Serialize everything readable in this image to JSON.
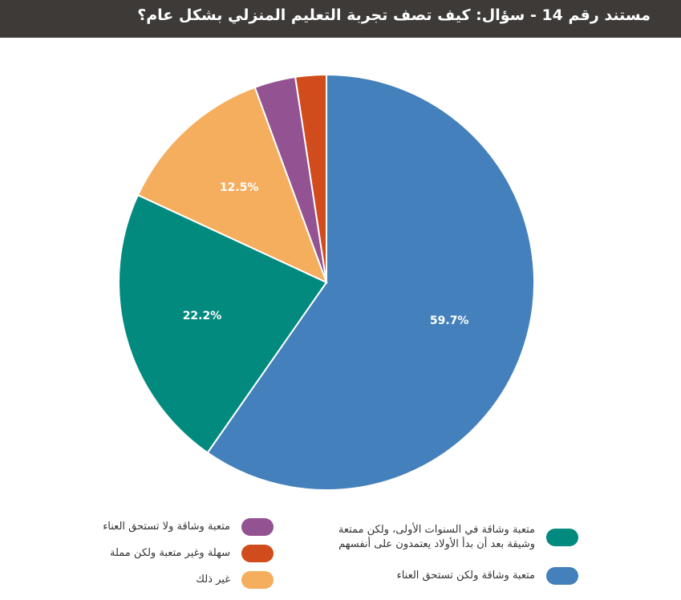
{
  "header": {
    "title": "مستند رقم 14 - سؤال: كيف تصف تجربة التعليم المنزلي بشكل عام؟"
  },
  "chart_data": {
    "type": "pie",
    "title": "",
    "slices": [
      {
        "label": "متعبة وشاقة ولكن تستحق العناء",
        "value": 59.7,
        "display": "59.7%",
        "color": "#4480bb"
      },
      {
        "label": "متعبة وشاقة في السنوات الأولى، ولكن ممتعة وشيقة بعد أن بدأ الأولاد يعتمدون على أنفسهم",
        "value": 22.2,
        "display": "22.2%",
        "color": "#028a7e"
      },
      {
        "label": "غير ذلك",
        "value": 12.5,
        "display": "12.5%",
        "color": "#f5ad5e"
      },
      {
        "label": "متعبة وشاقة ولا تستحق العناء",
        "value": 3.2,
        "display": "",
        "color": "#935292"
      },
      {
        "label": "سهلة وغير متعبة ولكن مملة",
        "value": 2.4,
        "display": "",
        "color": "#d04c1c"
      }
    ]
  },
  "legend": {
    "right": [
      {
        "label": "متعبة وشاقة في السنوات الأولى، ولكن ممتعة وشيقة بعد أن بدأ الأولاد يعتمدون على أنفسهم",
        "color": "#028a7e"
      },
      {
        "label": "متعبة وشاقة ولكن تستحق العناء",
        "color": "#4480bb"
      }
    ],
    "left": [
      {
        "label": "متعبة وشاقة ولا تستحق العناء",
        "color": "#935292"
      },
      {
        "label": "سهلة وغير متعبة ولكن مملة",
        "color": "#d04c1c"
      },
      {
        "label": "غير ذلك",
        "color": "#f5ad5e"
      }
    ]
  }
}
